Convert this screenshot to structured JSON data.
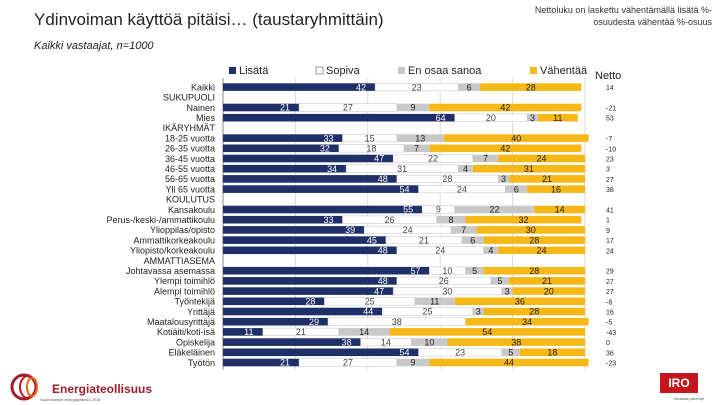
{
  "header": {
    "title": "Ydinvoiman käyttöä pitäisi… (taustaryhmittäin)",
    "subtitle": "Kaikki vastaajat, n=1000",
    "note": "Nettoluku on laskettu vähentämällä lisätä %-osuudesta vähentää %-osuus"
  },
  "footer": {
    "brand": "Energiateollisuus",
    "small": "Suomalainen energiayhteisö 2018",
    "iro_logo": "IRO",
    "iro_tag": "tiedosta parempi"
  },
  "colors": {
    "lisata": "#1f2f67",
    "sopiva": "#ffffff",
    "eos": "#c8c8c8",
    "vahenta": "#f6b817",
    "grid": "#d9d9d9"
  },
  "chart_data": {
    "type": "bar",
    "orientation": "horizontal",
    "stacked": true,
    "legend_position": "top",
    "xlim": [
      0,
      100
    ],
    "xticks": [
      "0",
      "20",
      "40",
      "60",
      "80",
      "100"
    ],
    "x_unit": "%",
    "netto_header": "Netto",
    "legend": [
      "Lisätä",
      "Sopiva",
      "En osaa sanoa",
      "Vähentää"
    ],
    "rows": [
      {
        "label": "Kaikki",
        "values": [
          42,
          23,
          6,
          28
        ],
        "netto": "14"
      },
      {
        "label": "SUKUPUOLI",
        "values": null,
        "netto": ""
      },
      {
        "label": "Nainen",
        "values": [
          21,
          27,
          9,
          42
        ],
        "netto": "-21"
      },
      {
        "label": "Mies",
        "values": [
          64,
          20,
          3,
          11
        ],
        "netto": "53"
      },
      {
        "label": "IKÄRYHMÄT",
        "values": null,
        "netto": ""
      },
      {
        "label": "18-25 vuotta",
        "values": [
          33,
          15,
          13,
          40
        ],
        "netto": "-7"
      },
      {
        "label": "26-35 vuotta",
        "values": [
          32,
          18,
          7,
          42
        ],
        "netto": "-10"
      },
      {
        "label": "36-45 vuotta",
        "values": [
          47,
          22,
          7,
          24
        ],
        "netto": "23"
      },
      {
        "label": "46-55 vuotta",
        "values": [
          34,
          31,
          4,
          31
        ],
        "netto": "3"
      },
      {
        "label": "56-65 vuotta",
        "values": [
          48,
          28,
          3,
          21
        ],
        "netto": "27"
      },
      {
        "label": "Yli 65 vuotta",
        "values": [
          54,
          24,
          6,
          16
        ],
        "netto": "38"
      },
      {
        "label": "KOULUTUS",
        "values": null,
        "netto": ""
      },
      {
        "label": "Kansakoulu",
        "values": [
          55,
          9,
          22,
          14
        ],
        "netto": "41"
      },
      {
        "label": "Perus-/keski-/ammattikoulu",
        "values": [
          33,
          26,
          8,
          32
        ],
        "netto": "1"
      },
      {
        "label": "Ylioppilas/opisto",
        "values": [
          39,
          24,
          7,
          30
        ],
        "netto": "9"
      },
      {
        "label": "Ammattikorkeakoulu",
        "values": [
          45,
          21,
          6,
          28
        ],
        "netto": "17"
      },
      {
        "label": "Yliopisto/korkeakoulu",
        "values": [
          48,
          24,
          4,
          24
        ],
        "netto": "24"
      },
      {
        "label": "AMMATTIASEMA",
        "values": null,
        "netto": ""
      },
      {
        "label": "Johtavassa asemassa",
        "values": [
          57,
          10,
          5,
          28
        ],
        "netto": "29"
      },
      {
        "label": "Ylempi toimihlö",
        "values": [
          48,
          26,
          5,
          21
        ],
        "netto": "27"
      },
      {
        "label": "Alempi toimihlö",
        "values": [
          47,
          30,
          3,
          20
        ],
        "netto": "27"
      },
      {
        "label": "Työntekijä",
        "values": [
          28,
          25,
          11,
          36
        ],
        "netto": "-8"
      },
      {
        "label": "Yrittäjä",
        "values": [
          44,
          25,
          3,
          28
        ],
        "netto": "16"
      },
      {
        "label": "Maatalousyrittäjä",
        "values": [
          29,
          38,
          0,
          34
        ],
        "netto": "-5"
      },
      {
        "label": "Kotiäiti/koti-isä",
        "values": [
          11,
          21,
          14,
          54
        ],
        "netto": "-43"
      },
      {
        "label": "Opiskelija",
        "values": [
          38,
          14,
          10,
          38
        ],
        "netto": "0"
      },
      {
        "label": "Eläkeläinen",
        "values": [
          54,
          23,
          5,
          18
        ],
        "netto": "36"
      },
      {
        "label": "Työtön",
        "values": [
          21,
          27,
          9,
          44
        ],
        "netto": "-23"
      }
    ]
  }
}
